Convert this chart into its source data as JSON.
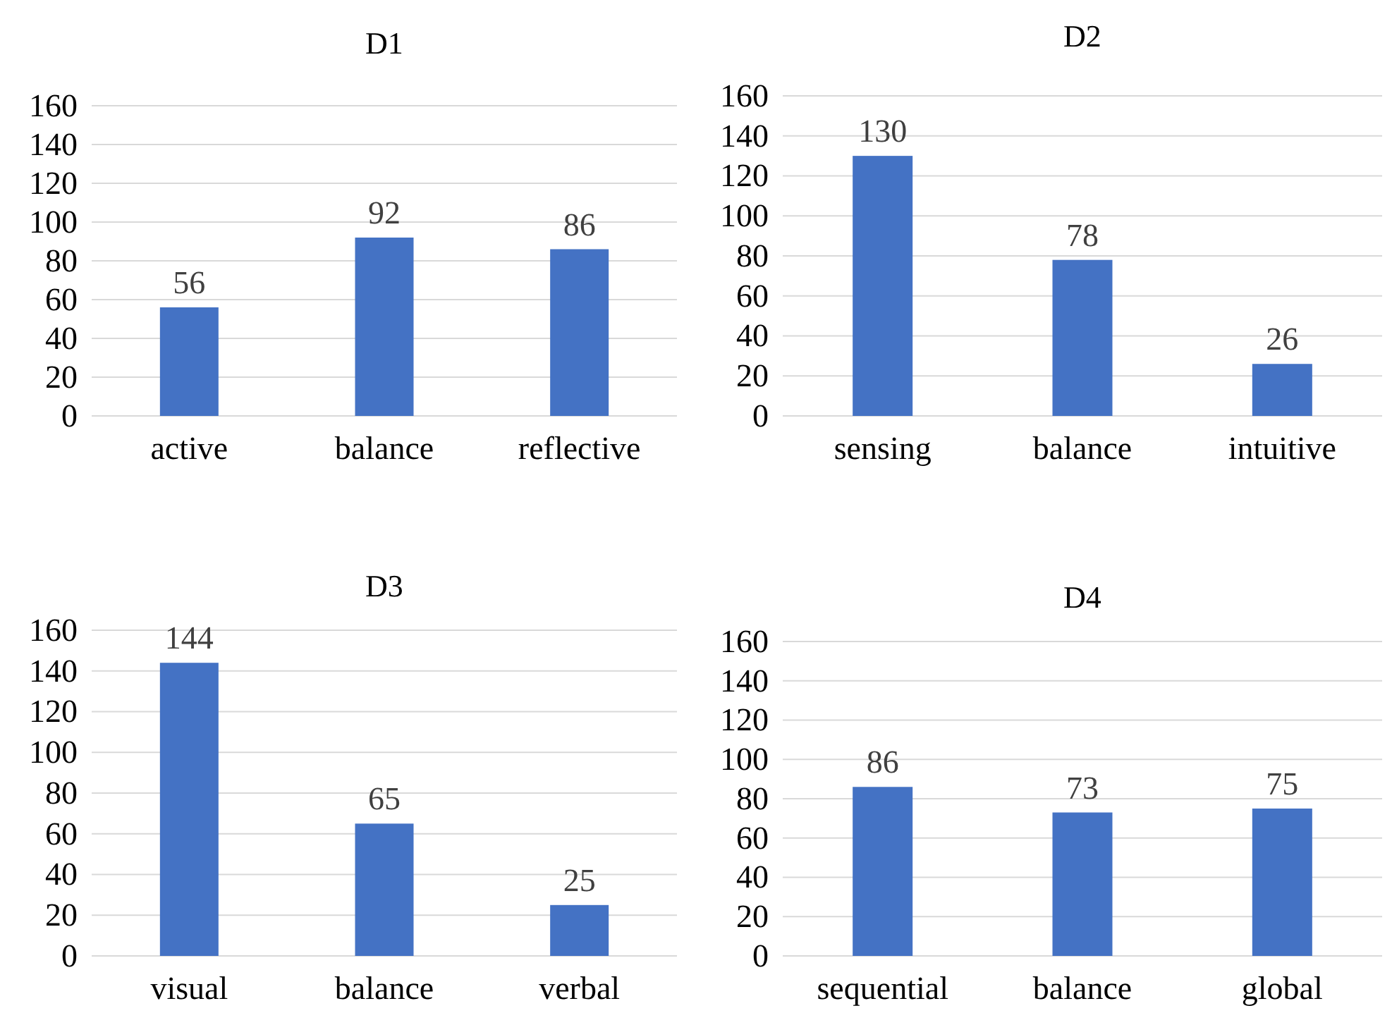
{
  "chart_data": [
    {
      "type": "bar",
      "title": "D1",
      "categories": [
        "active",
        "balance",
        "reflective"
      ],
      "values": [
        56,
        92,
        86
      ],
      "color": "#4472c4",
      "ylim": [
        0,
        160
      ],
      "yticks": [
        0,
        20,
        40,
        60,
        80,
        100,
        120,
        140,
        160
      ],
      "grid": "y",
      "data_labels": true
    },
    {
      "type": "bar",
      "title": "D2",
      "categories": [
        "sensing",
        "balance",
        "intuitive"
      ],
      "values": [
        130,
        78,
        26
      ],
      "color": "#4472c4",
      "ylim": [
        0,
        160
      ],
      "yticks": [
        0,
        20,
        40,
        60,
        80,
        100,
        120,
        140,
        160
      ],
      "grid": "y",
      "data_labels": true
    },
    {
      "type": "bar",
      "title": "D3",
      "categories": [
        "visual",
        "balance",
        "verbal"
      ],
      "values": [
        144,
        65,
        25
      ],
      "color": "#4472c4",
      "ylim": [
        0,
        160
      ],
      "yticks": [
        0,
        20,
        40,
        60,
        80,
        100,
        120,
        140,
        160
      ],
      "grid": "y",
      "data_labels": true
    },
    {
      "type": "bar",
      "title": "D4",
      "categories": [
        "sequential",
        "balance",
        "global"
      ],
      "values": [
        86,
        73,
        75
      ],
      "color": "#4472c4",
      "ylim": [
        0,
        160
      ],
      "yticks": [
        0,
        20,
        40,
        60,
        80,
        100,
        120,
        140,
        160
      ],
      "grid": "y",
      "data_labels": true
    }
  ]
}
